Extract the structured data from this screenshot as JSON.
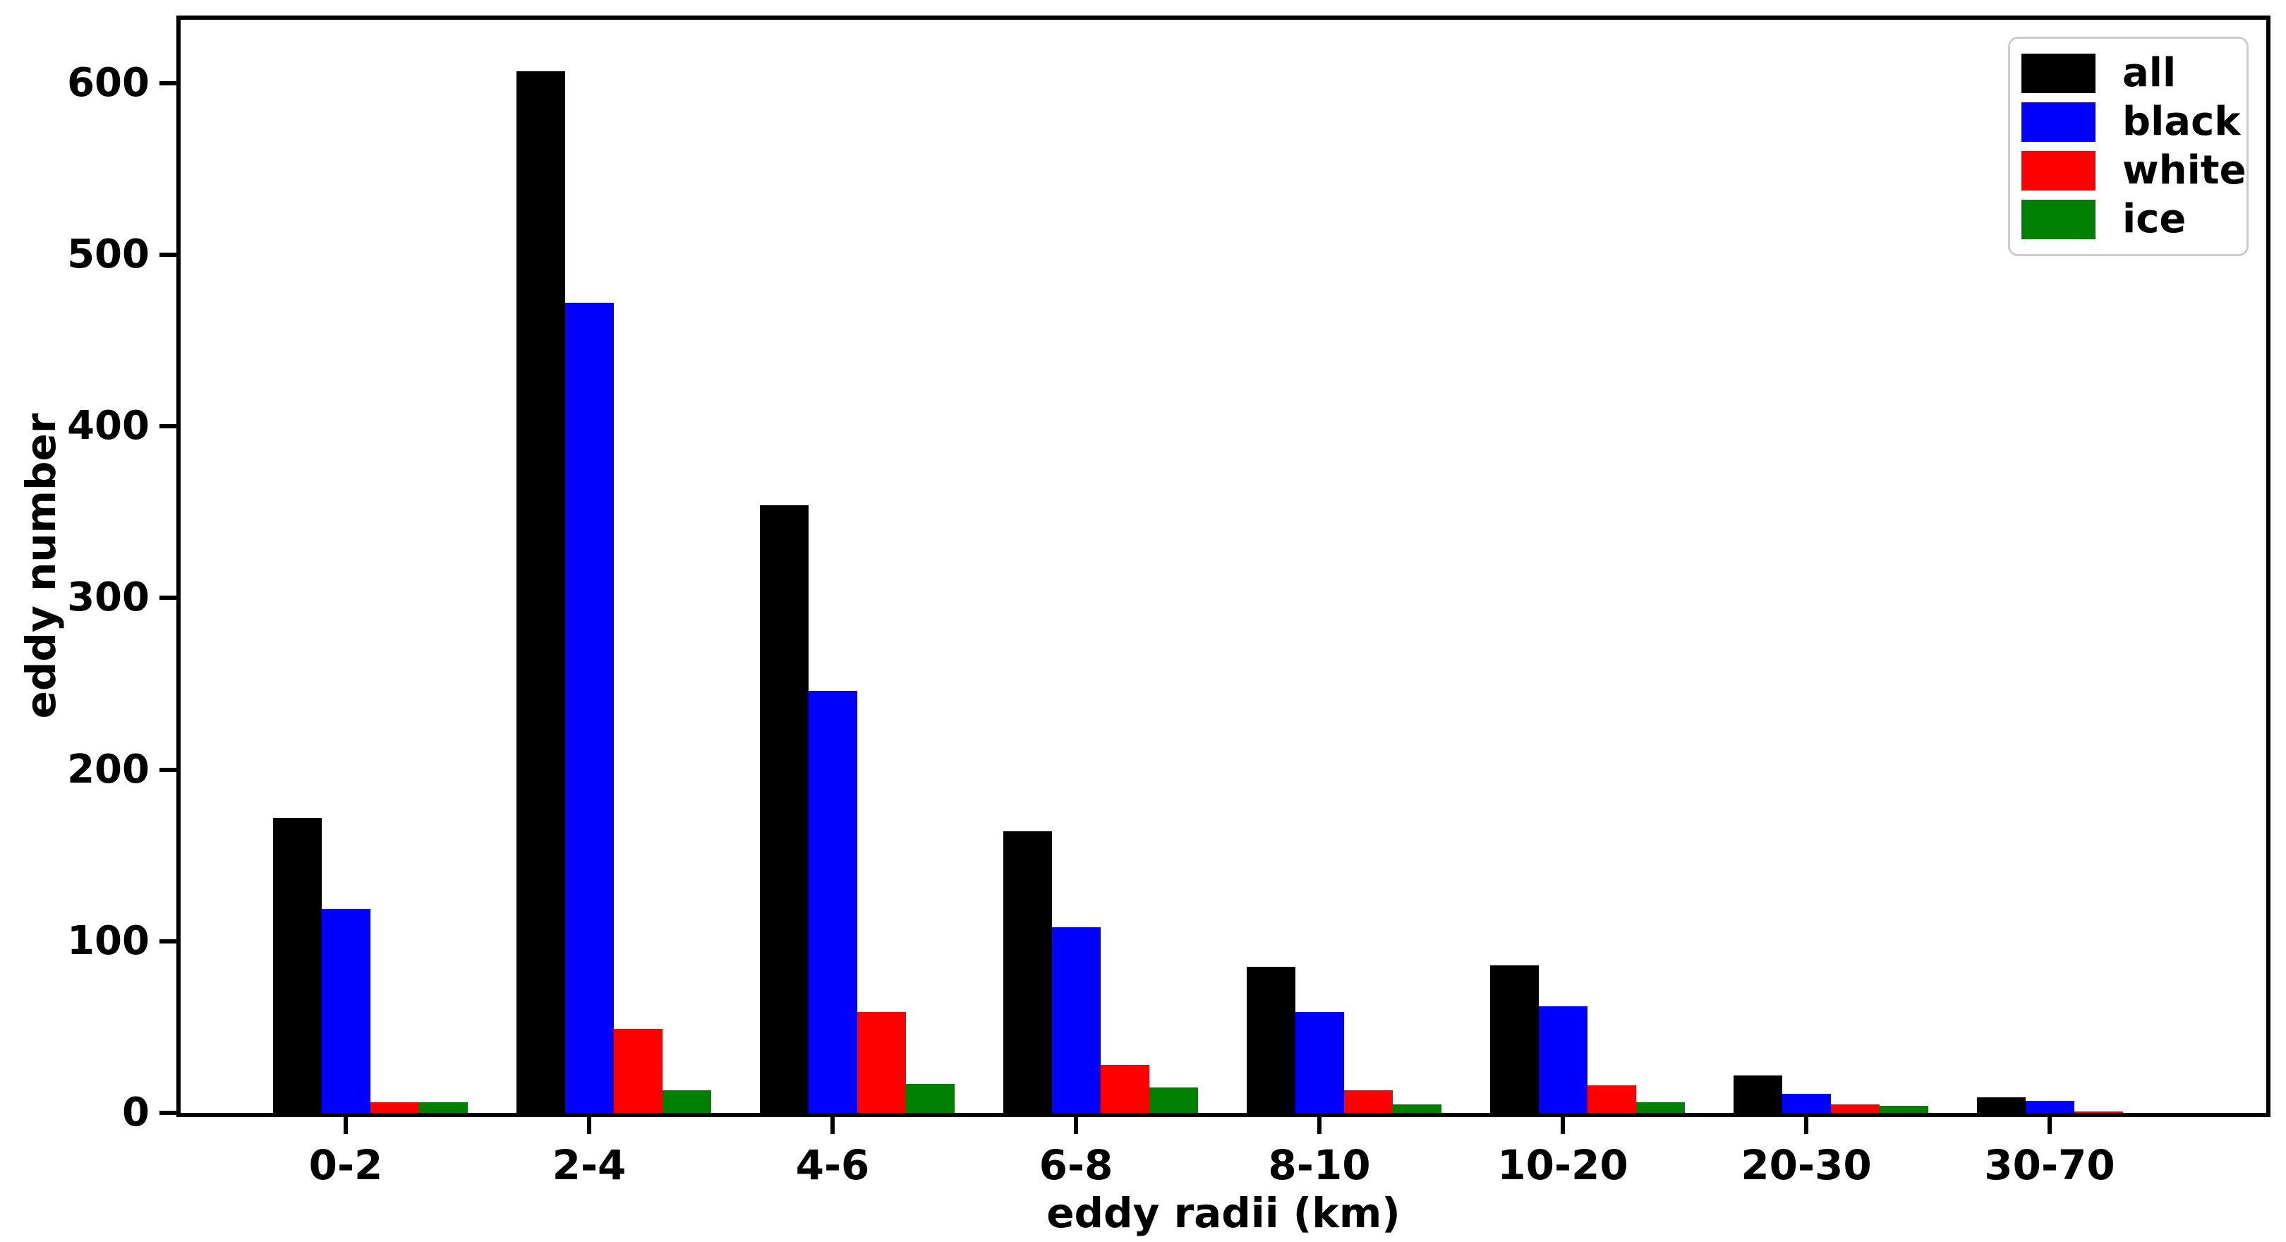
{
  "chart_data": {
    "type": "bar",
    "title": "",
    "xlabel": "eddy radii (km)",
    "ylabel": "eddy number",
    "categories": [
      "0-2",
      "2-4",
      "4-6",
      "6-8",
      "8-10",
      "10-20",
      "20-30",
      "30-70"
    ],
    "series": [
      {
        "name": "all",
        "color": "#000000",
        "values": [
          172,
          607,
          354,
          164,
          85,
          86,
          22,
          9
        ]
      },
      {
        "name": "black",
        "color": "#0000ff",
        "values": [
          119,
          472,
          246,
          108,
          59,
          62,
          11,
          7
        ]
      },
      {
        "name": "white",
        "color": "#ff0000",
        "values": [
          6,
          49,
          59,
          28,
          13,
          16,
          5,
          1
        ]
      },
      {
        "name": "ice",
        "color": "#008000",
        "values": [
          6,
          13,
          17,
          15,
          5,
          6,
          4,
          0
        ]
      }
    ],
    "ylim": [
      0,
      637
    ],
    "yticks": [
      0,
      100,
      200,
      300,
      400,
      500,
      600
    ],
    "grid": false,
    "legend_position": "upper right",
    "background": "#ffffff",
    "axis_color": "#000000"
  }
}
